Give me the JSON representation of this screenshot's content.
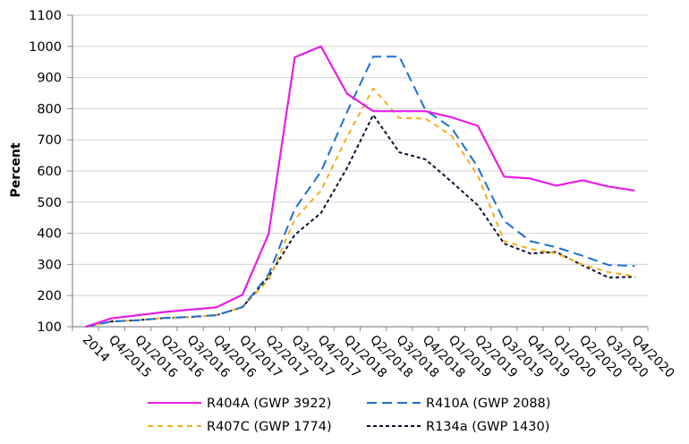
{
  "chart_data": {
    "type": "line",
    "title": "",
    "xlabel": "",
    "ylabel": "Percent",
    "ylim": [
      100,
      1100
    ],
    "yticks": [
      100,
      200,
      300,
      400,
      500,
      600,
      700,
      800,
      900,
      1000,
      1100
    ],
    "grid": true,
    "legend_position": "bottom",
    "categories": [
      "2014",
      "Q4/2015",
      "Q1/2016",
      "Q2/2016",
      "Q3/2016",
      "Q4/2016",
      "Q1/2017",
      "Q2/2017",
      "Q3/2017",
      "Q4/2017",
      "Q1/2018",
      "Q2/2018",
      "Q3/2018",
      "Q4/2018",
      "Q1/2019",
      "Q2/2019",
      "Q3/2019",
      "Q4/2019",
      "Q1/2020",
      "Q2/2020",
      "Q3/2020",
      "Q4/2020"
    ],
    "series": [
      {
        "name": "R404A (GWP 3922)",
        "color": "#E61EE6",
        "style": "solid",
        "values": [
          100,
          127,
          137,
          147,
          155,
          162,
          203,
          398,
          965,
          1000,
          848,
          792,
          792,
          792,
          772,
          745,
          582,
          576,
          553,
          570,
          550,
          537
        ]
      },
      {
        "name": "R410A (GWP 2088)",
        "color": "#1E6FD2",
        "style": "long-dash",
        "values": [
          100,
          117,
          121,
          128,
          132,
          137,
          163,
          268,
          478,
          598,
          790,
          967,
          967,
          795,
          738,
          612,
          440,
          375,
          355,
          328,
          298,
          295
        ]
      },
      {
        "name": "R407C (GWP 1774)",
        "color": "#F5AF1E",
        "style": "short-dash",
        "values": [
          100,
          117,
          121,
          128,
          131,
          137,
          163,
          250,
          445,
          537,
          710,
          865,
          770,
          768,
          713,
          585,
          375,
          350,
          335,
          300,
          275,
          262
        ]
      },
      {
        "name": "R134a (GWP 1430)",
        "color": "#0A1432",
        "style": "dot-dash",
        "values": [
          100,
          117,
          121,
          128,
          131,
          137,
          163,
          260,
          395,
          465,
          610,
          780,
          660,
          637,
          565,
          490,
          367,
          335,
          340,
          297,
          258,
          260
        ]
      }
    ]
  }
}
